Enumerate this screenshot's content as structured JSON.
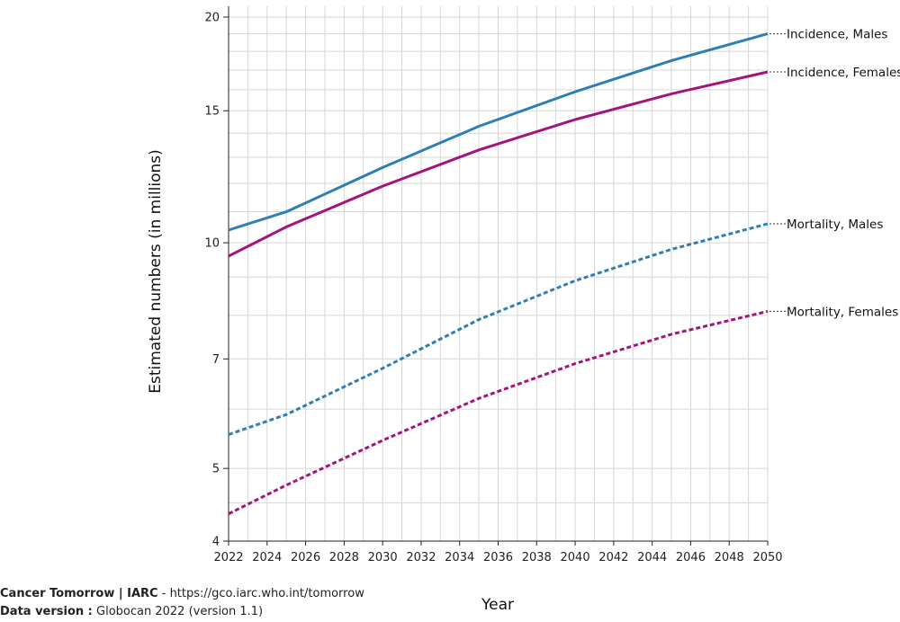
{
  "footer": {
    "source_name": "Cancer Tomorrow | IARC",
    "source_sep": " - ",
    "source_url": "https://gco.iarc.who.int/tomorrow",
    "version_label": "Data version :",
    "version_value": " Globocan 2022 (version 1.1)"
  },
  "colors": {
    "males": "#2f7fb5",
    "females": "#a3147c"
  },
  "chart_data": {
    "type": "line",
    "xlabel": "Year",
    "ylabel": "Estimated numbers (in millions)",
    "y_scale": "log",
    "ylim": [
      4,
      20
    ],
    "xlim": [
      2022,
      2050
    ],
    "x_ticks": [
      2022,
      2024,
      2026,
      2028,
      2030,
      2032,
      2034,
      2036,
      2038,
      2040,
      2042,
      2044,
      2046,
      2048,
      2050
    ],
    "y_ticks": [
      4,
      5,
      7,
      10,
      15,
      20
    ],
    "grid": true,
    "x": [
      2022,
      2025,
      2030,
      2035,
      2040,
      2045,
      2050
    ],
    "series": [
      {
        "name": "Incidence, Males",
        "color": "#2f7fb5",
        "dashed": false,
        "values": [
          10.4,
          11.0,
          12.6,
          14.3,
          15.9,
          17.5,
          19.0
        ]
      },
      {
        "name": "Incidence, Females",
        "color": "#a3147c",
        "dashed": false,
        "values": [
          9.6,
          10.5,
          11.9,
          13.3,
          14.6,
          15.8,
          16.9
        ]
      },
      {
        "name": "Mortality, Males",
        "color": "#2f7fb5",
        "dashed": true,
        "values": [
          5.55,
          5.9,
          6.8,
          7.9,
          8.9,
          9.8,
          10.6
        ]
      },
      {
        "name": "Mortality, Females",
        "color": "#a3147c",
        "dashed": true,
        "values": [
          4.35,
          4.75,
          5.45,
          6.2,
          6.9,
          7.55,
          8.1
        ]
      }
    ]
  }
}
